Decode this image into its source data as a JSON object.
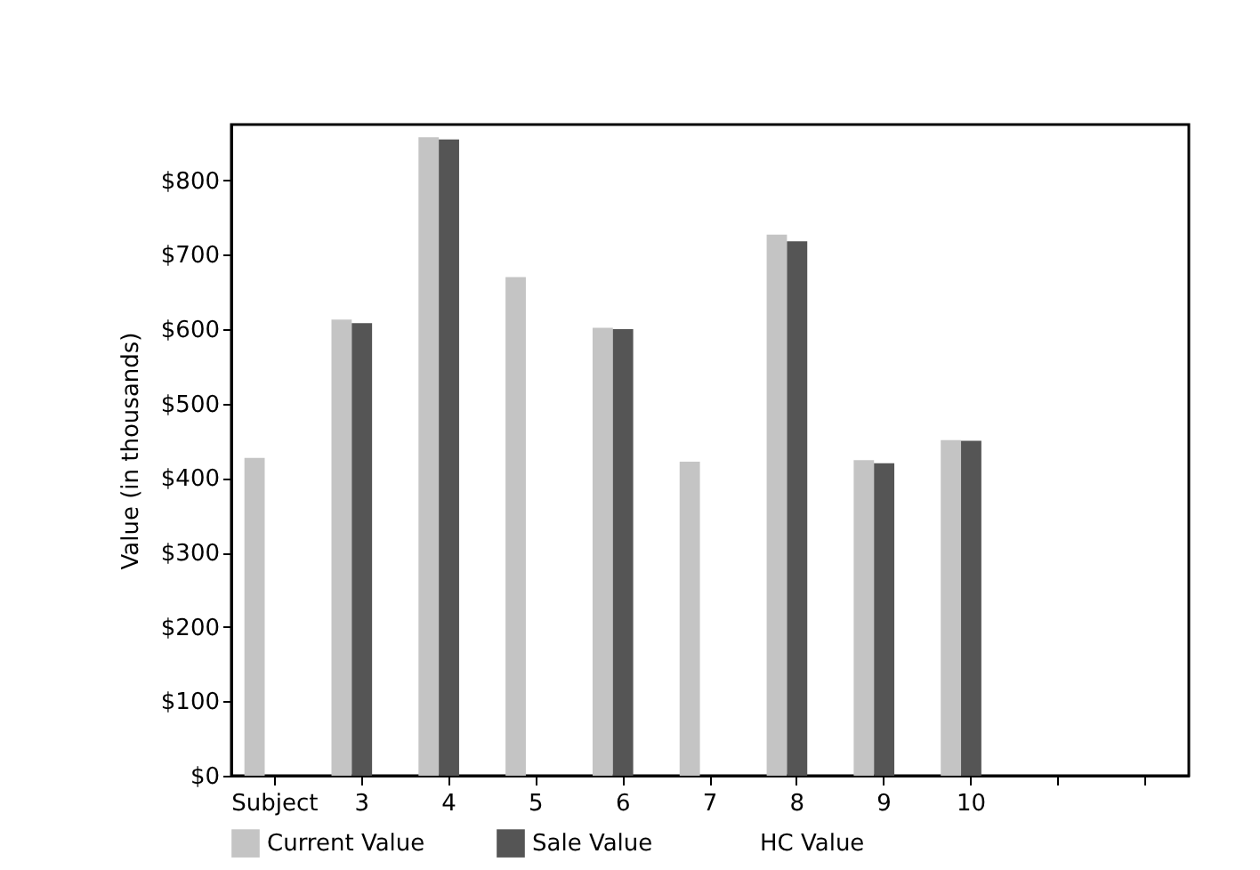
{
  "chart_data": {
    "type": "bar",
    "ylabel": "Value (in thousands)",
    "categories": [
      "Subject",
      "3",
      "4",
      "5",
      "6",
      "7",
      "8",
      "9",
      "10",
      null,
      null
    ],
    "series": [
      {
        "name": "Current Value",
        "color": "#c4c4c4",
        "values": [
          427,
          613,
          858,
          670,
          602,
          422,
          727,
          424,
          451,
          null,
          null
        ]
      },
      {
        "name": "Sale Value",
        "color": "#555555",
        "values": [
          null,
          608,
          855,
          null,
          600,
          null,
          718,
          420,
          450,
          null,
          null
        ]
      },
      {
        "name": "HC Value",
        "values": [
          null,
          null,
          null,
          null,
          null,
          null,
          null,
          null,
          null,
          null,
          null
        ]
      }
    ],
    "ylim": [
      0,
      875
    ],
    "yticks": [
      {
        "value": 0,
        "label": "$0"
      },
      {
        "value": 100,
        "label": "$100"
      },
      {
        "value": 200,
        "label": "$200"
      },
      {
        "value": 300,
        "label": "$300"
      },
      {
        "value": 400,
        "label": "$400"
      },
      {
        "value": 500,
        "label": "$500"
      },
      {
        "value": 600,
        "label": "$600"
      },
      {
        "value": 700,
        "label": "$700"
      },
      {
        "value": 800,
        "label": "$800"
      }
    ],
    "grid": false,
    "legend": "bottom"
  }
}
